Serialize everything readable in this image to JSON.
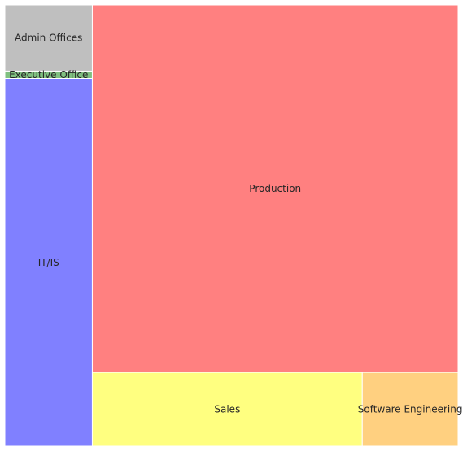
{
  "chart_data": {
    "type": "treemap",
    "title": "",
    "items": [
      {
        "label": "Admin Offices",
        "value": 9,
        "color": "#bfbfbf"
      },
      {
        "label": "Executive Office",
        "value": 1,
        "color": "#80c080"
      },
      {
        "label": "IT/IS",
        "value": 50,
        "color": "#8080ff"
      },
      {
        "label": "Production",
        "value": 209,
        "color": "#ff8080"
      },
      {
        "label": "Sales",
        "value": 31,
        "color": "#ffff80"
      },
      {
        "label": "Software Engineering",
        "value": 11,
        "color": "#ffd080"
      }
    ]
  }
}
